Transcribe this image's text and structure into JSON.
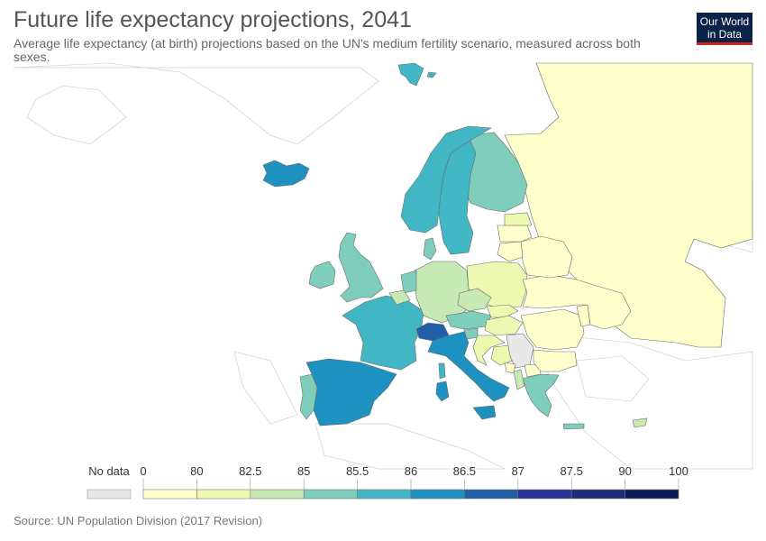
{
  "title": "Future life expectancy projections, 2041",
  "subtitle": "Average life expectancy (at birth) projections based on the UN's medium fertility scenario, measured across both sexes.",
  "logo": {
    "line1": "Our World",
    "line2": "in Data"
  },
  "source": "Source: UN Population Division (2017 Revision)",
  "legend": {
    "no_data_label": "No data",
    "no_data_color": "#e8e8e8",
    "thresholds": [
      "0",
      "80",
      "82.5",
      "85",
      "85.5",
      "86",
      "86.5",
      "87",
      "87.5",
      "90",
      "100"
    ],
    "colors": [
      "#ffffcc",
      "#edf8b1",
      "#c7e9b4",
      "#7fcdbb",
      "#41b6c4",
      "#1d91c0",
      "#225ea8",
      "#253494",
      "#1b2d7a",
      "#081d58"
    ]
  },
  "countries": {
    "russia": {
      "name": "Russia",
      "band": 0
    },
    "finland": {
      "name": "Finland",
      "band": 3
    },
    "sweden": {
      "name": "Sweden",
      "band": 4
    },
    "norway": {
      "name": "Norway",
      "band": 4
    },
    "iceland": {
      "name": "Iceland",
      "band": 5
    },
    "svalbard": {
      "name": "Svalbard",
      "band": 4
    },
    "denmark": {
      "name": "Denmark",
      "band": 3
    },
    "uk": {
      "name": "United Kingdom",
      "band": 3
    },
    "ireland": {
      "name": "Ireland",
      "band": 3
    },
    "france": {
      "name": "France",
      "band": 4
    },
    "spain": {
      "name": "Spain",
      "band": 5
    },
    "portugal": {
      "name": "Portugal",
      "band": 3
    },
    "italy": {
      "name": "Italy",
      "band": 5
    },
    "switzerland": {
      "name": "Switzerland",
      "band": 6
    },
    "germany": {
      "name": "Germany",
      "band": 2
    },
    "netherlands": {
      "name": "Netherlands",
      "band": 3
    },
    "belgium": {
      "name": "Belgium",
      "band": 2
    },
    "austria": {
      "name": "Austria",
      "band": 3
    },
    "poland": {
      "name": "Poland",
      "band": 1
    },
    "czechia": {
      "name": "Czechia",
      "band": 2
    },
    "slovakia": {
      "name": "Slovakia",
      "band": 1
    },
    "hungary": {
      "name": "Hungary",
      "band": 1
    },
    "slovenia": {
      "name": "Slovenia",
      "band": 3
    },
    "croatia": {
      "name": "Croatia",
      "band": 1
    },
    "bosnia": {
      "name": "Bosnia and Herzegovina",
      "band": 1
    },
    "serbia": {
      "name": "Serbia",
      "band": -1
    },
    "romania": {
      "name": "Romania",
      "band": 0
    },
    "bulgaria": {
      "name": "Bulgaria",
      "band": 0
    },
    "greece": {
      "name": "Greece",
      "band": 3
    },
    "albania": {
      "name": "Albania",
      "band": 2
    },
    "montenegro": {
      "name": "Montenegro",
      "band": 0
    },
    "macedonia": {
      "name": "North Macedonia",
      "band": 0
    },
    "estonia": {
      "name": "Estonia",
      "band": 1
    },
    "latvia": {
      "name": "Latvia",
      "band": 0
    },
    "lithuania": {
      "name": "Lithuania",
      "band": 0
    },
    "belarus": {
      "name": "Belarus",
      "band": 0
    },
    "ukraine": {
      "name": "Ukraine",
      "band": 0
    },
    "moldova": {
      "name": "Moldova",
      "band": 0
    },
    "cyprus": {
      "name": "Cyprus",
      "band": 2
    },
    "crete": {
      "name": "Greece (Crete)",
      "band": 3
    },
    "sardinia": {
      "name": "Italy (Sardinia)",
      "band": 5
    },
    "corsica": {
      "name": "France (Corsica)",
      "band": 4
    },
    "sicily": {
      "name": "Italy (Sicily)",
      "band": 5
    }
  }
}
